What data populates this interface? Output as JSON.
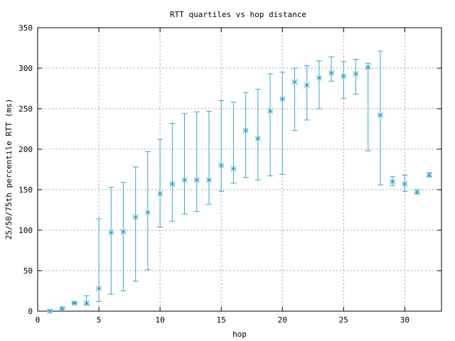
{
  "chart_data": {
    "type": "scatter",
    "title": "RTT quartiles vs hop distance",
    "xlabel": "hop",
    "ylabel": "25/50/75th percentile RTT (ms)",
    "xlim": [
      0,
      33
    ],
    "ylim": [
      0,
      350
    ],
    "xticks": [
      0,
      5,
      10,
      15,
      20,
      25,
      30
    ],
    "yticks": [
      0,
      50,
      100,
      150,
      200,
      250,
      300,
      350
    ],
    "grid": true,
    "marker": "asterisk",
    "error_bars": true,
    "color": "#3aa6c8",
    "hop": [
      1,
      2,
      3,
      4,
      5,
      6,
      7,
      8,
      9,
      10,
      11,
      12,
      13,
      14,
      15,
      16,
      17,
      18,
      19,
      20,
      21,
      22,
      23,
      24,
      25,
      26,
      27,
      28,
      29,
      30,
      31,
      32
    ],
    "p25": [
      0,
      2,
      9,
      8,
      12,
      21,
      25,
      37,
      51,
      104,
      111,
      120,
      123,
      132,
      148,
      158,
      165,
      162,
      167,
      169,
      223,
      236,
      250,
      284,
      263,
      268,
      198,
      156,
      155,
      148,
      145,
      166
    ],
    "p50": [
      0,
      3,
      10,
      10,
      28,
      97,
      98,
      116,
      122,
      145,
      157,
      162,
      162,
      162,
      180,
      176,
      223,
      213,
      247,
      262,
      283,
      279,
      288,
      294,
      290,
      293,
      301,
      242,
      160,
      157,
      147,
      168
    ],
    "p75": [
      1,
      5,
      11,
      19,
      114,
      153,
      159,
      178,
      197,
      212,
      232,
      244,
      246,
      247,
      260,
      258,
      270,
      274,
      293,
      295,
      300,
      303,
      309,
      314,
      308,
      311,
      306,
      321,
      166,
      168,
      150,
      171
    ]
  }
}
